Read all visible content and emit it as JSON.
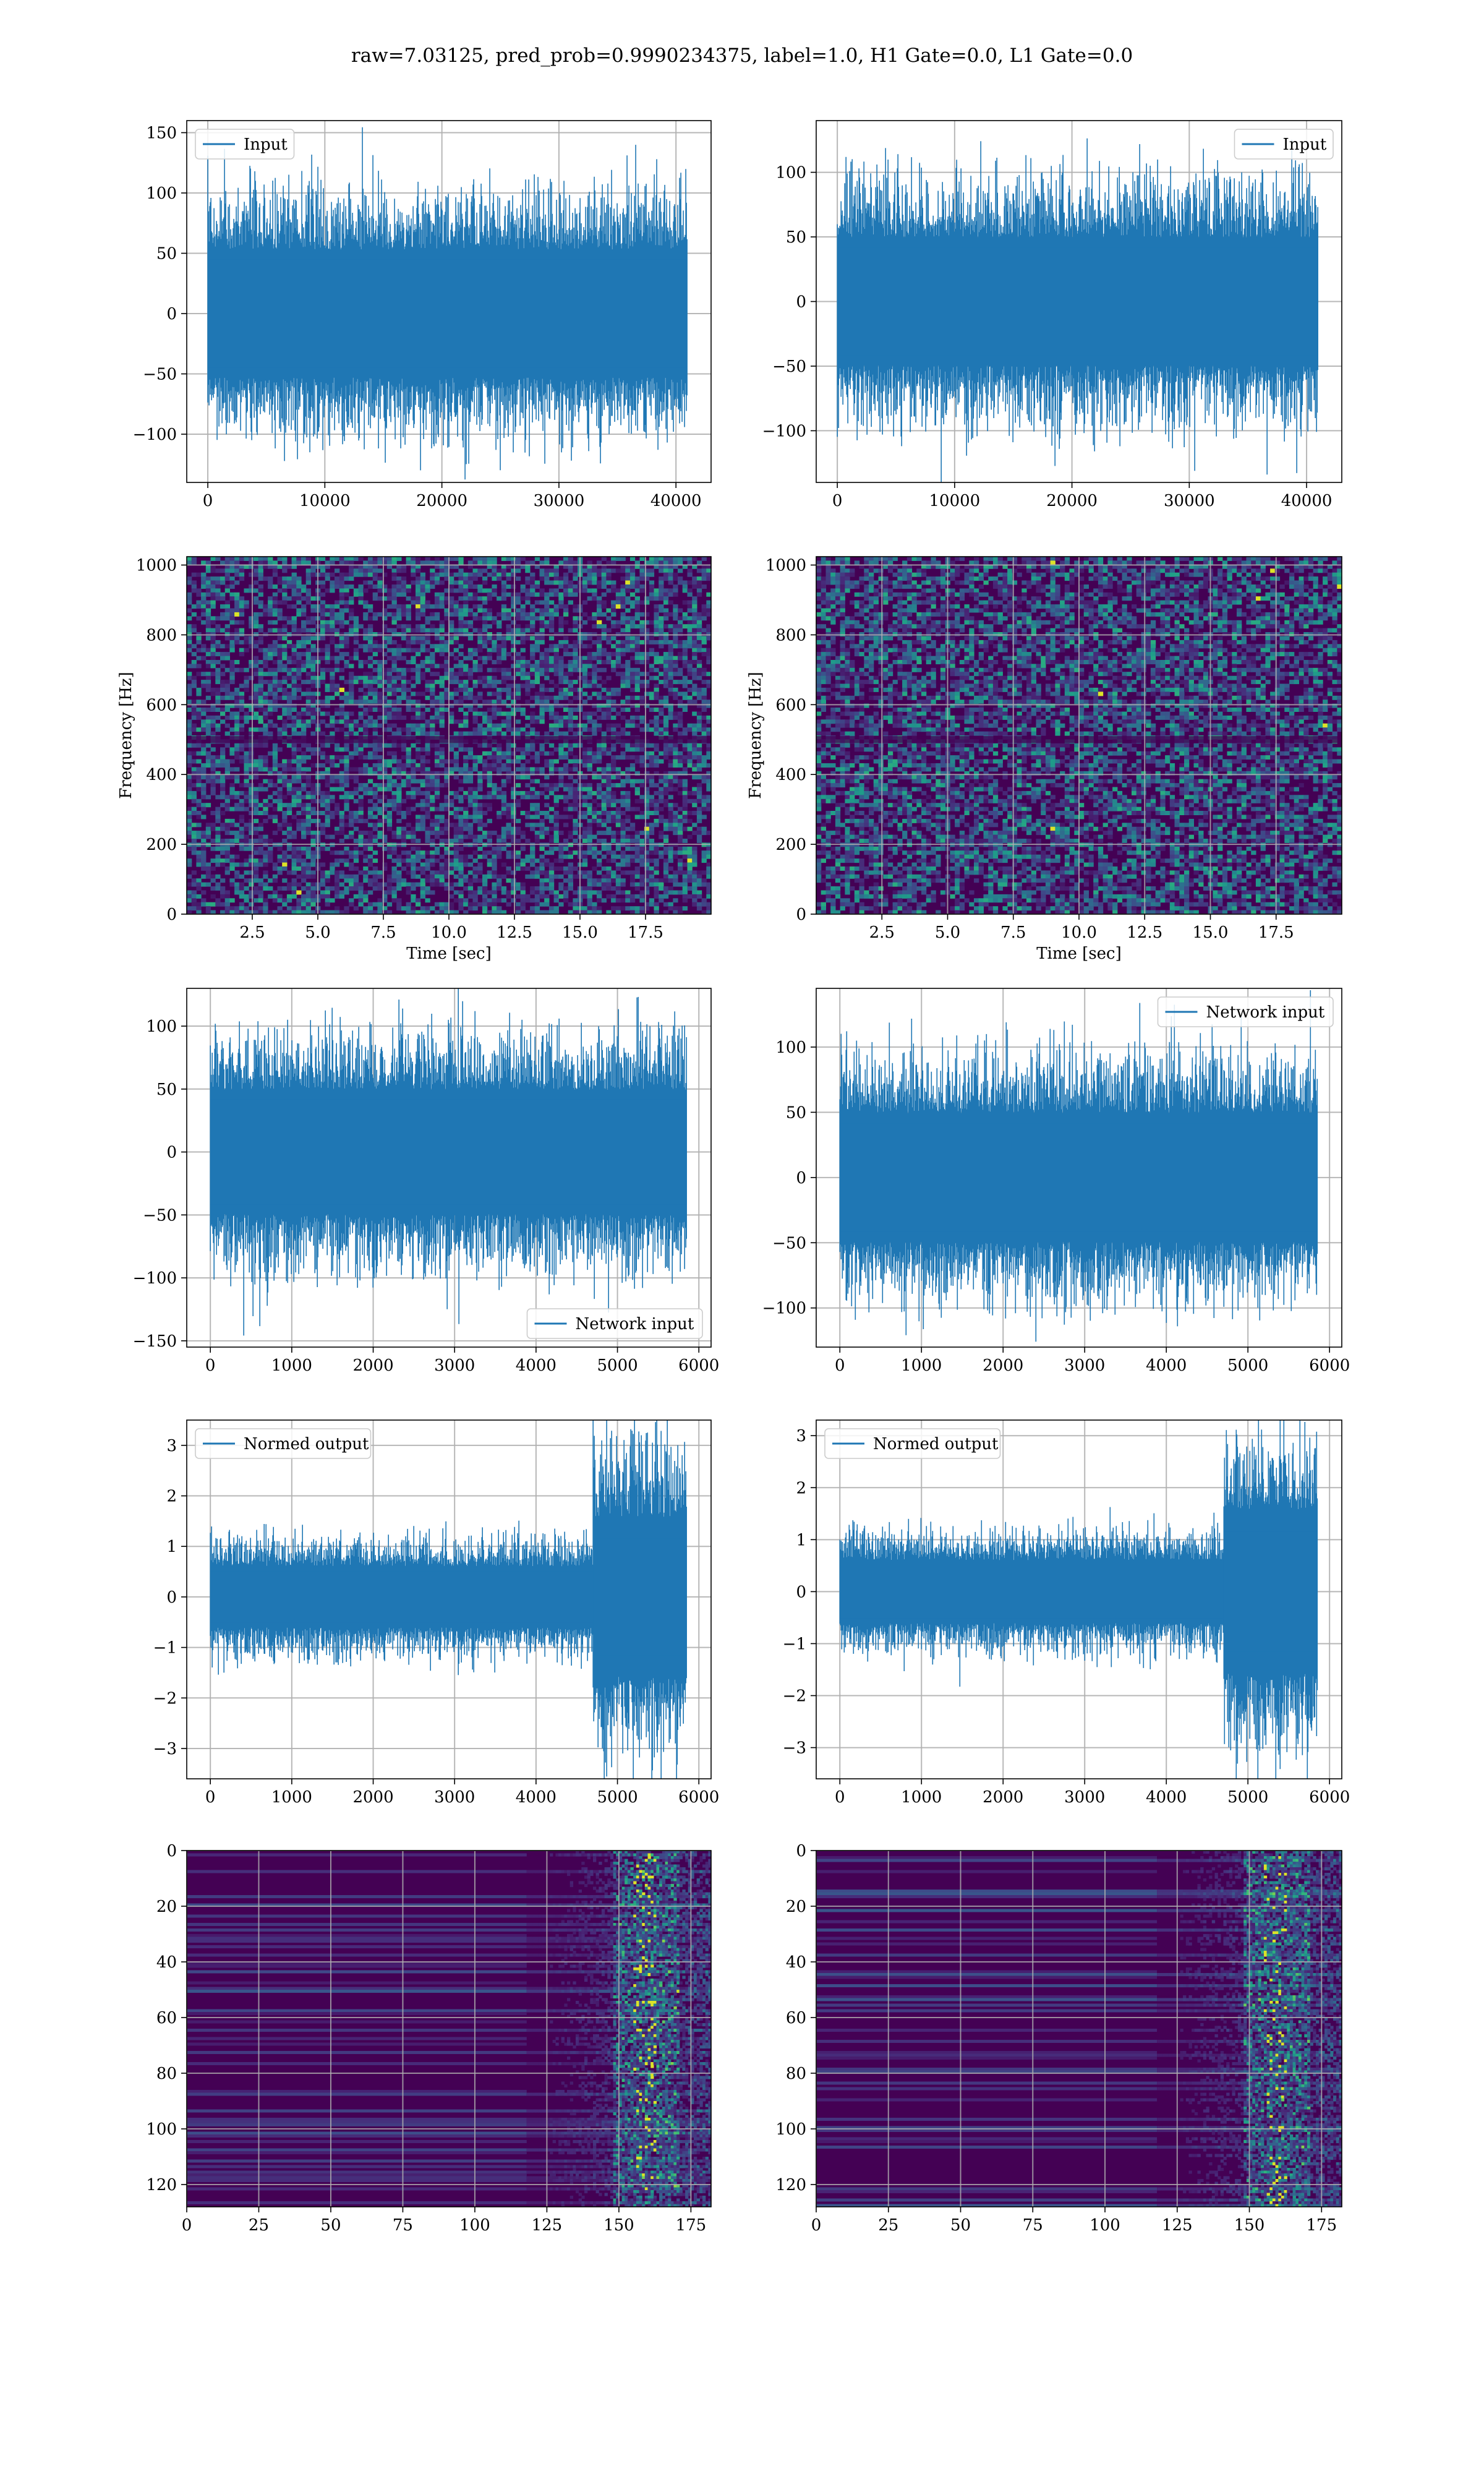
{
  "figure": {
    "title": "raw=7.03125, pred_prob=0.9990234375, label=1.0, H1 Gate=0.0, L1 Gate=0.0"
  },
  "colors": {
    "line": "#1f77b4",
    "grid": "#b0b0b0",
    "viridis_dark": "#440154",
    "viridis_mid": "#21918c",
    "viridis_bright": "#fde725"
  },
  "chart_data": [
    {
      "id": "input-h1",
      "type": "line",
      "row": 0,
      "col": 0,
      "series": [
        {
          "name": "Input",
          "n": 40960,
          "amplitude": 110,
          "spread": 28
        }
      ],
      "xlim": [
        -1800,
        43000
      ],
      "ylim": [
        -140,
        160
      ],
      "xticks": [
        0,
        10000,
        20000,
        30000,
        40000
      ],
      "yticks": [
        -100,
        -50,
        0,
        50,
        100,
        150
      ],
      "legend": "upper left",
      "xlabel": "",
      "ylabel": "",
      "grid": true
    },
    {
      "id": "input-l1",
      "type": "line",
      "row": 0,
      "col": 1,
      "series": [
        {
          "name": "Input",
          "n": 40960,
          "amplitude": 105,
          "spread": 26
        }
      ],
      "xlim": [
        -1800,
        43000
      ],
      "ylim": [
        -140,
        140
      ],
      "xticks": [
        0,
        10000,
        20000,
        30000,
        40000
      ],
      "yticks": [
        -100,
        -50,
        0,
        50,
        100
      ],
      "legend": "upper right",
      "xlabel": "",
      "ylabel": "",
      "grid": true
    },
    {
      "id": "spectrogram-h1",
      "type": "heatmap",
      "row": 1,
      "col": 0,
      "xlim": [
        0,
        20
      ],
      "ylim": [
        0,
        1024
      ],
      "xticks": [
        2.5,
        5.0,
        7.5,
        10.0,
        12.5,
        15.0,
        17.5
      ],
      "yticks": [
        0,
        200,
        400,
        600,
        800,
        1000
      ],
      "xlabel": "Time [sec]",
      "ylabel": "Frequency [Hz]",
      "grid": true
    },
    {
      "id": "spectrogram-l1",
      "type": "heatmap",
      "row": 1,
      "col": 1,
      "xlim": [
        0,
        20
      ],
      "ylim": [
        0,
        1024
      ],
      "xticks": [
        2.5,
        5.0,
        7.5,
        10.0,
        12.5,
        15.0,
        17.5
      ],
      "yticks": [
        0,
        200,
        400,
        600,
        800,
        1000
      ],
      "xlabel": "Time [sec]",
      "ylabel": "Frequency [Hz]",
      "grid": true
    },
    {
      "id": "network-input-h1",
      "type": "line",
      "row": 2,
      "col": 0,
      "series": [
        {
          "name": "Network input",
          "n": 5850,
          "amplitude": 100,
          "spread": 26
        }
      ],
      "xlim": [
        -290,
        6150
      ],
      "ylim": [
        -155,
        130
      ],
      "xticks": [
        0,
        1000,
        2000,
        3000,
        4000,
        5000,
        6000
      ],
      "yticks": [
        -150,
        -100,
        -50,
        0,
        50,
        100
      ],
      "legend": "lower right",
      "xlabel": "",
      "ylabel": "",
      "grid": true
    },
    {
      "id": "network-input-l1",
      "type": "line",
      "row": 2,
      "col": 1,
      "series": [
        {
          "name": "Network input",
          "n": 5850,
          "amplitude": 100,
          "spread": 26
        }
      ],
      "xlim": [
        -290,
        6150
      ],
      "ylim": [
        -130,
        145
      ],
      "xticks": [
        0,
        1000,
        2000,
        3000,
        4000,
        5000,
        6000
      ],
      "yticks": [
        -100,
        -50,
        0,
        50,
        100
      ],
      "legend": "upper right",
      "xlabel": "",
      "ylabel": "",
      "grid": true
    },
    {
      "id": "normed-output-h1",
      "type": "line",
      "row": 3,
      "col": 0,
      "series": [
        {
          "name": "Normed output",
          "n": 5850,
          "amplitude": 1.3,
          "spread": 0.32,
          "burst_start": 4700,
          "burst_amplitude": 3.2
        }
      ],
      "xlim": [
        -290,
        6150
      ],
      "ylim": [
        -3.6,
        3.5
      ],
      "xticks": [
        0,
        1000,
        2000,
        3000,
        4000,
        5000,
        6000
      ],
      "yticks": [
        -3,
        -2,
        -1,
        0,
        1,
        2,
        3
      ],
      "legend": "upper left",
      "xlabel": "",
      "ylabel": "",
      "grid": true
    },
    {
      "id": "normed-output-l1",
      "type": "line",
      "row": 3,
      "col": 1,
      "series": [
        {
          "name": "Normed output",
          "n": 5850,
          "amplitude": 1.3,
          "spread": 0.32,
          "burst_start": 4700,
          "burst_amplitude": 3.0
        }
      ],
      "xlim": [
        -290,
        6150
      ],
      "ylim": [
        -3.6,
        3.3
      ],
      "xticks": [
        0,
        1000,
        2000,
        3000,
        4000,
        5000,
        6000
      ],
      "yticks": [
        -3,
        -2,
        -1,
        0,
        1,
        2,
        3
      ],
      "legend": "upper left",
      "xlabel": "",
      "ylabel": "",
      "grid": true
    },
    {
      "id": "feature-map-h1",
      "type": "heatmap",
      "row": 4,
      "col": 0,
      "xlim": [
        0,
        182
      ],
      "ylim": [
        128,
        0
      ],
      "xticks": [
        0,
        25,
        50,
        75,
        100,
        125,
        150,
        175
      ],
      "yticks": [
        0,
        20,
        40,
        60,
        80,
        100,
        120
      ],
      "xlabel": "",
      "ylabel": "",
      "grid": true
    },
    {
      "id": "feature-map-l1",
      "type": "heatmap",
      "row": 4,
      "col": 1,
      "xlim": [
        0,
        182
      ],
      "ylim": [
        128,
        0
      ],
      "xticks": [
        0,
        25,
        50,
        75,
        100,
        125,
        150,
        175
      ],
      "yticks": [
        0,
        20,
        40,
        60,
        80,
        100,
        120
      ],
      "xlabel": "",
      "ylabel": "",
      "grid": true
    }
  ]
}
